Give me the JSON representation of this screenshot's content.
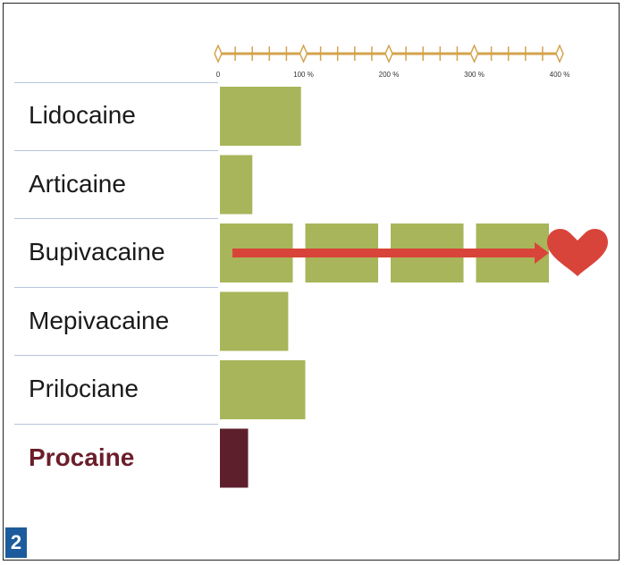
{
  "figure_number": "2",
  "chart_data": {
    "type": "bar",
    "categories": [
      "Lidocaine",
      "Articaine",
      "Bupivacaine",
      "Mepivacaine",
      "Prilociane",
      "Procaine"
    ],
    "values": [
      95,
      38,
      400,
      80,
      100,
      33
    ],
    "highlighted_category": "Procaine",
    "xlim": [
      0,
      400
    ],
    "x_ticks": [
      "0",
      "100 %",
      "200 %",
      "300 %",
      "400 %"
    ],
    "scale_position": "top",
    "segment_size": 100,
    "bar_color": "#a8b55a",
    "highlight_color": "#5e1f2d",
    "annotation": {
      "category": "Bupivacaine",
      "shape": "arrow-to-heart",
      "color": "#d9443a"
    },
    "axis_color": "#d4a24c"
  }
}
